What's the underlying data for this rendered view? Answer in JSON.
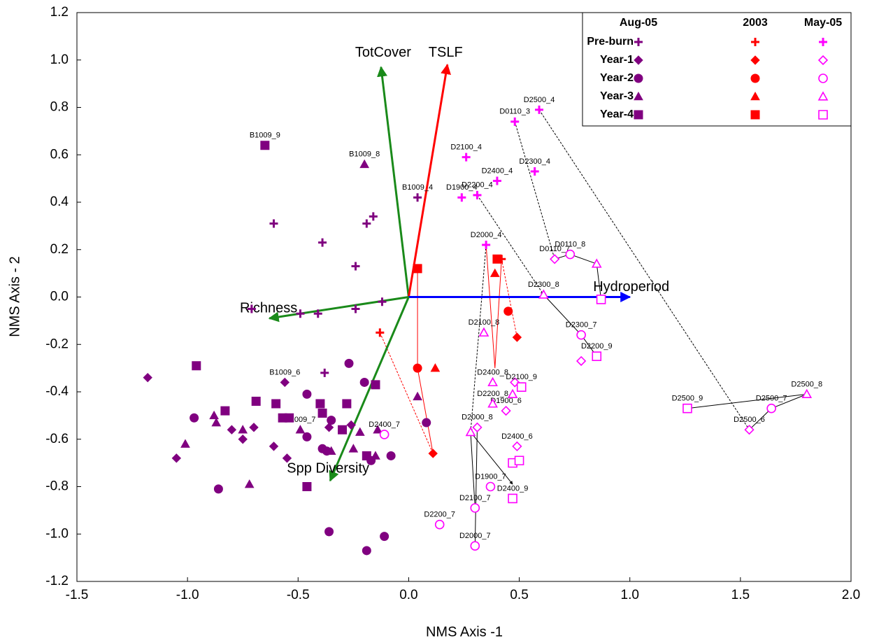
{
  "chart_data": {
    "type": "scatter",
    "x_label": "NMS Axis -1",
    "y_label": "NMS Axis - 2",
    "xlim": [
      -1.5,
      2.0
    ],
    "ylim": [
      -1.2,
      1.2
    ],
    "xticks": [
      -1.5,
      {
        "value": -1,
        "label": "-1.0"
      },
      -0.5,
      {
        "value": 0,
        "label": "0.0"
      },
      0.5,
      {
        "value": 1,
        "label": "1.0"
      },
      1.5,
      {
        "value": 2,
        "label": "2.0"
      }
    ],
    "yticks": [
      -1.2,
      {
        "value": -1,
        "label": "-1.0"
      },
      -0.8,
      -0.6,
      -0.4,
      -0.2,
      {
        "value": 0,
        "label": "0.0"
      },
      0.2,
      0.4,
      0.6,
      0.8,
      {
        "value": 1,
        "label": "1.0"
      },
      1.2
    ],
    "grid": false,
    "legend_position": "upper right",
    "marker_rows": [
      {
        "label": "Pre-burn",
        "marker": "plus"
      },
      {
        "label": "Year-1",
        "marker": "diamond"
      },
      {
        "label": "Year-2",
        "marker": "circle"
      },
      {
        "label": "Year-3",
        "marker": "triangle"
      },
      {
        "label": "Year-4",
        "marker": "square"
      }
    ],
    "groups": [
      {
        "label": "Aug-05",
        "color": "#800080",
        "hollow": false,
        "series": [
          {
            "x": [
              -0.61,
              -0.39,
              -0.16,
              -0.19,
              -0.24,
              0.04,
              -0.12,
              -0.24,
              -0.41,
              -0.49,
              -0.71,
              -0.38
            ],
            "y": [
              0.31,
              0.23,
              0.34,
              0.31,
              0.13,
              0.42,
              -0.02,
              -0.05,
              -0.07,
              -0.07,
              -0.05,
              -0.32
            ],
            "labels": [
              null,
              null,
              null,
              null,
              null,
              "B1009_4",
              null,
              null,
              null,
              null,
              null,
              null
            ]
          },
          {
            "x": [
              -1.18,
              -0.56,
              -1.05,
              -0.8,
              -0.75,
              -0.7,
              -0.61,
              -0.55,
              -0.26,
              -0.36
            ],
            "y": [
              -0.34,
              -0.36,
              -0.68,
              -0.56,
              -0.6,
              -0.55,
              -0.63,
              -0.68,
              -0.54,
              -0.55
            ],
            "labels": [
              null,
              "B1009_6",
              null,
              null,
              null,
              null,
              null,
              null,
              null,
              null
            ]
          },
          {
            "x": [
              -0.97,
              -0.86,
              -0.46,
              -0.27,
              -0.2,
              -0.46,
              -0.39,
              -0.37,
              -0.36,
              -0.19,
              -0.11,
              -0.08,
              -0.17,
              0.08,
              -0.35
            ],
            "y": [
              -0.51,
              -0.81,
              -0.41,
              -0.28,
              -0.36,
              -0.59,
              -0.64,
              -0.65,
              -0.99,
              -1.07,
              -1.01,
              -0.67,
              -0.69,
              -0.53,
              -0.52
            ],
            "labels": [
              null,
              null,
              null,
              null,
              null,
              null,
              null,
              null,
              null,
              null,
              null,
              null,
              null,
              null,
              null
            ]
          },
          {
            "x": [
              -1.01,
              -0.88,
              -0.87,
              -0.75,
              -0.72,
              -0.35,
              -0.25,
              -0.22,
              -0.14,
              -0.15,
              -0.2,
              0.04,
              -0.49
            ],
            "y": [
              -0.62,
              -0.5,
              -0.53,
              -0.56,
              -0.79,
              -0.65,
              -0.64,
              -0.57,
              -0.56,
              -0.67,
              0.56,
              -0.42,
              -0.56
            ],
            "labels": [
              null,
              null,
              null,
              null,
              null,
              null,
              null,
              null,
              null,
              null,
              "B1009_8",
              null,
              "B1009_7"
            ]
          },
          {
            "x": [
              -0.65,
              -0.96,
              -0.83,
              -0.69,
              -0.6,
              -0.57,
              -0.54,
              -0.4,
              -0.39,
              -0.28,
              -0.3,
              -0.15,
              -0.19,
              -0.46
            ],
            "y": [
              0.64,
              -0.29,
              -0.48,
              -0.44,
              -0.45,
              -0.51,
              -0.51,
              -0.45,
              -0.49,
              -0.45,
              -0.56,
              -0.37,
              -0.67,
              -0.8
            ],
            "labels": [
              "B1009_9",
              null,
              null,
              null,
              null,
              null,
              null,
              null,
              null,
              null,
              null,
              null,
              null,
              null
            ]
          }
        ]
      },
      {
        "label": "2003",
        "color": "#ff0000",
        "hollow": false,
        "series": [
          {
            "x": [
              -0.13,
              0.42
            ],
            "y": [
              -0.15,
              0.16
            ],
            "labels": [
              null,
              null
            ]
          },
          {
            "x": [
              0.11,
              0.49
            ],
            "y": [
              -0.66,
              -0.17
            ],
            "labels": [
              null,
              null
            ]
          },
          {
            "x": [
              0.04,
              0.45
            ],
            "y": [
              -0.3,
              -0.06
            ],
            "labels": [
              null,
              null
            ]
          },
          {
            "x": [
              0.12,
              0.39
            ],
            "y": [
              -0.3,
              0.1
            ],
            "labels": [
              null,
              null
            ]
          },
          {
            "x": [
              0.04,
              0.4
            ],
            "y": [
              0.12,
              0.16
            ],
            "labels": [
              null,
              null
            ]
          }
        ]
      },
      {
        "label": "May-05",
        "color": "#ff00ff",
        "hollow": true,
        "series": [
          {
            "x": [
              0.59,
              0.48,
              0.26,
              0.57,
              0.4,
              0.24,
              0.31,
              0.35
            ],
            "y": [
              0.79,
              0.74,
              0.59,
              0.53,
              0.49,
              0.42,
              0.43,
              0.22
            ],
            "labels": [
              "D2500_4",
              "D0110_3",
              "D2100_4",
              "D2300_4",
              "D2400_4",
              "D1900_4",
              "D2200_4",
              "D2000_4"
            ]
          },
          {
            "x": [
              0.66,
              1.54,
              0.78,
              0.44,
              0.49,
              0.48,
              0.31
            ],
            "y": [
              0.16,
              -0.56,
              -0.27,
              -0.48,
              -0.63,
              -0.36,
              -0.55
            ],
            "labels": [
              "D0110_7",
              "D2500_6",
              null,
              "D1900_6",
              "D2400_6",
              null,
              "D2000_8"
            ]
          },
          {
            "x": [
              0.73,
              0.78,
              1.64,
              0.14,
              0.3,
              0.3,
              0.37,
              -0.11
            ],
            "y": [
              0.18,
              -0.16,
              -0.47,
              -0.96,
              -0.89,
              -1.05,
              -0.8,
              -0.58
            ],
            "labels": [
              "D0110_8",
              "D2300_7",
              "D2500_7",
              "D2200_7",
              "D2100_7",
              "D2000_7",
              "D1900_7",
              "D2400_7"
            ]
          },
          {
            "x": [
              0.85,
              0.61,
              0.34,
              1.8,
              0.28,
              0.38,
              0.38,
              0.47
            ],
            "y": [
              0.14,
              0.01,
              -0.15,
              -0.41,
              -0.57,
              -0.36,
              -0.45,
              -0.41
            ],
            "labels": [
              null,
              "D2300_8",
              "D2100_8",
              "D2500_8",
              null,
              "D2400_8",
              "D2200_8",
              null
            ]
          },
          {
            "x": [
              0.87,
              0.85,
              1.26,
              0.47,
              0.47,
              0.5,
              0.51
            ],
            "y": [
              -0.01,
              -0.25,
              -0.47,
              -0.85,
              -0.7,
              -0.69,
              -0.38
            ],
            "labels": [
              null,
              "D2200_9",
              "D2500_9",
              "D2400_9",
              null,
              null,
              "D2100_9"
            ]
          }
        ]
      }
    ],
    "trajectories": [
      {
        "style": "dashed",
        "color": "#000000",
        "x": [
          0.59,
          1.54
        ],
        "y": [
          0.79,
          -0.56
        ]
      },
      {
        "style": "dashed",
        "color": "#000000",
        "x": [
          0.48,
          0.66
        ],
        "y": [
          0.74,
          0.16
        ]
      },
      {
        "style": "dashed",
        "color": "#000000",
        "x": [
          0.31,
          0.61
        ],
        "y": [
          0.43,
          0.01
        ]
      },
      {
        "style": "dashed",
        "color": "#000000",
        "x": [
          0.35,
          0.28
        ],
        "y": [
          0.22,
          -0.57
        ]
      },
      {
        "style": "solid",
        "color": "#000000",
        "x": [
          0.66,
          0.73,
          0.85,
          0.87
        ],
        "y": [
          0.16,
          0.18,
          0.14,
          -0.01
        ]
      },
      {
        "style": "solid",
        "color": "#000000",
        "x": [
          1.54,
          1.64,
          1.8,
          1.26
        ],
        "y": [
          -0.56,
          -0.47,
          -0.41,
          -0.47
        ]
      },
      {
        "style": "solid",
        "color": "#000000",
        "x": [
          0.61,
          0.78,
          0.85
        ],
        "y": [
          0.01,
          -0.16,
          -0.25
        ]
      },
      {
        "style": "solid",
        "color": "#000000",
        "x": [
          0.28,
          0.3
        ],
        "y": [
          -0.57,
          -0.89
        ]
      },
      {
        "style": "solid",
        "color": "#000000",
        "x": [
          0.31,
          0.3
        ],
        "y": [
          -0.55,
          -1.05
        ]
      },
      {
        "style": "solid",
        "color": "#000000",
        "x": [
          0.28,
          0.47
        ],
        "y": [
          -0.57,
          -0.79
        ]
      },
      {
        "style": "dashed",
        "color": "#ff0000",
        "x": [
          -0.13,
          0.11
        ],
        "y": [
          -0.15,
          -0.66
        ]
      },
      {
        "style": "solid",
        "color": "#ff0000",
        "x": [
          0.11,
          0.04,
          0.04
        ],
        "y": [
          -0.66,
          -0.3,
          0.12
        ]
      },
      {
        "style": "solid",
        "color": "#ff0000",
        "x": [
          0.35,
          0.39,
          0.42
        ],
        "y": [
          0.22,
          -0.3,
          0.16
        ]
      },
      {
        "style": "dashed",
        "color": "#ff0000",
        "x": [
          0.42,
          0.49
        ],
        "y": [
          0.16,
          -0.17
        ]
      }
    ],
    "vectors": [
      {
        "label": "TotCover",
        "x": -0.125,
        "y": 0.97,
        "color": "#1a8a1a"
      },
      {
        "label": "TSLF",
        "x": 0.175,
        "y": 0.98,
        "color": "#ff0000"
      },
      {
        "label": "Hydroperiod",
        "x": 1.0,
        "y": 0.0,
        "color": "#0000ff"
      },
      {
        "label": "Richness",
        "x": -0.63,
        "y": -0.09,
        "color": "#1a8a1a"
      },
      {
        "label": "Spp Diversity",
        "x": -0.355,
        "y": -0.775,
        "color": "#1a8a1a"
      }
    ]
  }
}
